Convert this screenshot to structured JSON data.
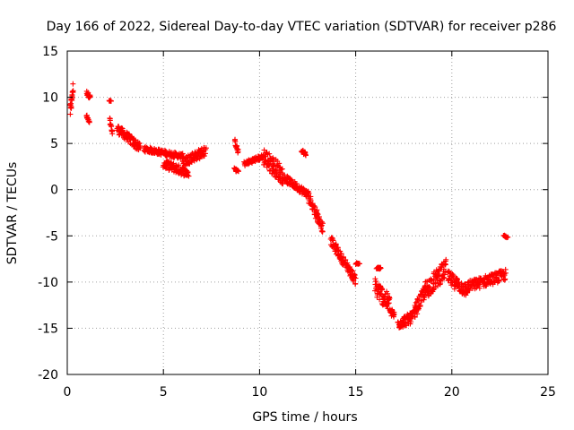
{
  "chart_data": {
    "type": "scatter",
    "title": "Day 166 of 2022, Sidereal Day-to-day VTEC variation (SDTVAR) for receiver p286",
    "xlabel": "GPS time / hours",
    "ylabel": "SDTVAR / TECUs",
    "xlim": [
      0,
      25
    ],
    "ylim": [
      -20,
      15
    ],
    "xticks": [
      0,
      5,
      10,
      15,
      20,
      25
    ],
    "yticks": [
      -20,
      -15,
      -10,
      -5,
      0,
      5,
      10,
      15
    ],
    "grid": true,
    "marker": "+",
    "color": "#ff0000",
    "series": [
      {
        "name": "SDTVAR",
        "segments": [
          {
            "x": [
              0.15,
              0.3
            ],
            "y": [
              8.4,
              11.0
            ],
            "spread": 1.2
          },
          {
            "x": [
              1.0,
              1.2
            ],
            "y": [
              10.5,
              10.0
            ],
            "spread": 0.5
          },
          {
            "x": [
              1.0,
              1.15
            ],
            "y": [
              8.0,
              7.2
            ],
            "spread": 0.4
          },
          {
            "x": [
              2.2,
              2.3
            ],
            "y": [
              9.6,
              9.6
            ],
            "spread": 0.1
          },
          {
            "x": [
              2.2,
              2.35
            ],
            "y": [
              7.6,
              6.1
            ],
            "spread": 0.4
          },
          {
            "x": [
              2.6,
              3.8
            ],
            "y": [
              6.6,
              4.5
            ],
            "spread": 1.0
          },
          {
            "x": [
              4.0,
              6.0
            ],
            "y": [
              4.4,
              3.6
            ],
            "spread": 0.6
          },
          {
            "x": [
              5.0,
              6.3
            ],
            "y": [
              2.8,
              1.8
            ],
            "spread": 1.0
          },
          {
            "x": [
              6.0,
              7.2
            ],
            "y": [
              3.0,
              4.2
            ],
            "spread": 1.1
          },
          {
            "x": [
              8.7,
              8.9
            ],
            "y": [
              5.2,
              4.0
            ],
            "spread": 0.5
          },
          {
            "x": [
              8.7,
              8.9
            ],
            "y": [
              2.2,
              2.0
            ],
            "spread": 0.3
          },
          {
            "x": [
              9.2,
              10.2
            ],
            "y": [
              2.8,
              3.6
            ],
            "spread": 0.5
          },
          {
            "x": [
              10.2,
              11.2
            ],
            "y": [
              3.6,
              1.6
            ],
            "spread": 2.0
          },
          {
            "x": [
              11.2,
              12.5
            ],
            "y": [
              1.4,
              -0.5
            ],
            "spread": 0.8
          },
          {
            "x": [
              12.2,
              12.4
            ],
            "y": [
              4.2,
              3.8
            ],
            "spread": 0.4
          },
          {
            "x": [
              12.5,
              13.3
            ],
            "y": [
              -0.5,
              -4.2
            ],
            "spread": 1.2
          },
          {
            "x": [
              13.7,
              15.0
            ],
            "y": [
              -5.5,
              -9.8
            ],
            "spread": 1.0
          },
          {
            "x": [
              15.0,
              15.2
            ],
            "y": [
              -8.0,
              -8.0
            ],
            "spread": 0.2
          },
          {
            "x": [
              16.1,
              16.3
            ],
            "y": [
              -8.5,
              -8.5
            ],
            "spread": 0.2
          },
          {
            "x": [
              16.0,
              16.8
            ],
            "y": [
              -10.5,
              -12.5
            ],
            "spread": 2.0
          },
          {
            "x": [
              16.8,
              17.0
            ],
            "y": [
              -13.2,
              -13.6
            ],
            "spread": 0.8
          },
          {
            "x": [
              17.2,
              18.0
            ],
            "y": [
              -14.5,
              -13.8
            ],
            "spread": 1.2
          },
          {
            "x": [
              18.0,
              18.6
            ],
            "y": [
              -13.5,
              -11.0
            ],
            "spread": 1.5
          },
          {
            "x": [
              18.6,
              19.7
            ],
            "y": [
              -11.0,
              -8.5
            ],
            "spread": 2.0
          },
          {
            "x": [
              19.8,
              20.8
            ],
            "y": [
              -9.5,
              -11.0
            ],
            "spread": 1.5
          },
          {
            "x": [
              20.8,
              22.8
            ],
            "y": [
              -10.5,
              -9.2
            ],
            "spread": 1.2
          },
          {
            "x": [
              22.7,
              22.9
            ],
            "y": [
              -5.0,
              -5.2
            ],
            "spread": 0.2
          }
        ]
      }
    ]
  }
}
